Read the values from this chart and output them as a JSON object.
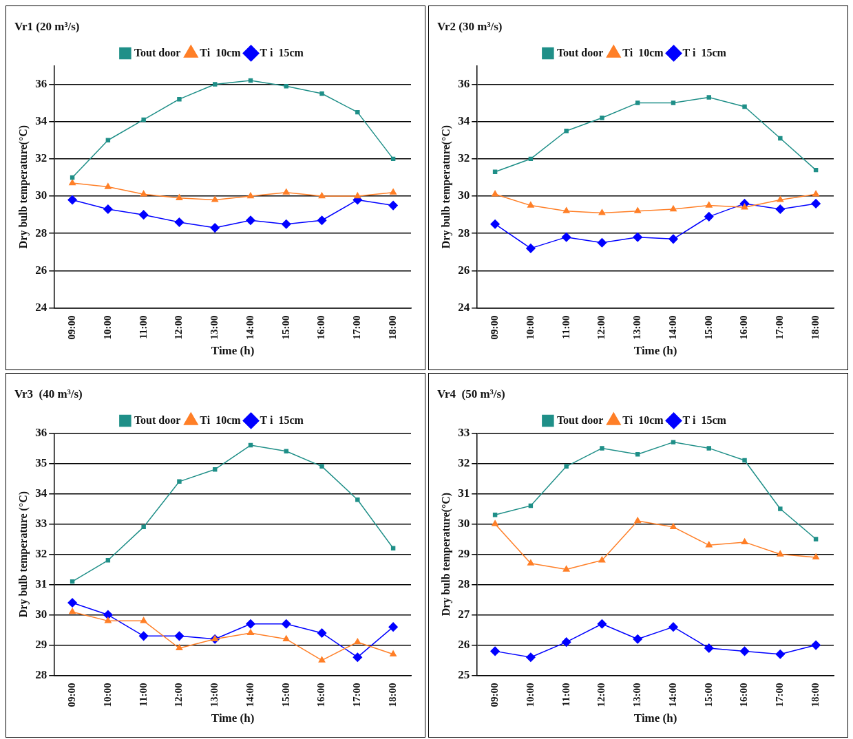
{
  "chart_data": [
    {
      "type": "line",
      "title": "Vr1 (20 m³/s)",
      "xlabel": "Time (h)",
      "ylabel": "Dry bulb temperature(°C)",
      "categories": [
        "09:00",
        "10:00",
        "11:00",
        "12:00",
        "13:00",
        "14:00",
        "15:00",
        "16:00",
        "17:00",
        "18:00"
      ],
      "ylim": [
        24,
        37
      ],
      "yticks": [
        24,
        26,
        28,
        30,
        32,
        34,
        36
      ],
      "grid": "y",
      "legend": "top",
      "series": [
        {
          "name": "Tout door",
          "color": "#1f8f88",
          "marker": "square",
          "values": [
            31.0,
            33.0,
            34.1,
            35.2,
            36.0,
            36.2,
            35.9,
            35.5,
            34.5,
            32.0
          ]
        },
        {
          "name": "Ti  10cm",
          "color": "#ff7f27",
          "marker": "triangle",
          "values": [
            30.7,
            30.5,
            30.1,
            29.9,
            29.8,
            30.0,
            30.2,
            30.0,
            30.0,
            30.2
          ]
        },
        {
          "name": "T i  15cm",
          "color": "#0000ff",
          "marker": "diamond",
          "values": [
            29.8,
            29.3,
            29.0,
            28.6,
            28.3,
            28.7,
            28.5,
            28.7,
            29.8,
            29.5
          ]
        }
      ]
    },
    {
      "type": "line",
      "title": "Vr2 (30 m³/s)",
      "xlabel": "Time (h)",
      "ylabel": "Dry bulb temperature(°C)",
      "categories": [
        "09:00",
        "10:00",
        "11:00",
        "12:00",
        "13:00",
        "14:00",
        "15:00",
        "16:00",
        "17:00",
        "18:00"
      ],
      "ylim": [
        24,
        37
      ],
      "yticks": [
        24,
        26,
        28,
        30,
        32,
        34,
        36
      ],
      "grid": "y",
      "legend": "top",
      "series": [
        {
          "name": "Tout door",
          "color": "#1f8f88",
          "marker": "square",
          "values": [
            31.3,
            32.0,
            33.5,
            34.2,
            35.0,
            35.0,
            35.3,
            34.8,
            33.1,
            31.4
          ]
        },
        {
          "name": "Ti  10cm",
          "color": "#ff7f27",
          "marker": "triangle",
          "values": [
            30.1,
            29.5,
            29.2,
            29.1,
            29.2,
            29.3,
            29.5,
            29.4,
            29.8,
            30.1
          ]
        },
        {
          "name": "T i  15cm",
          "color": "#0000ff",
          "marker": "diamond",
          "values": [
            28.5,
            27.2,
            27.8,
            27.5,
            27.8,
            27.7,
            28.9,
            29.6,
            29.3,
            29.6
          ]
        }
      ]
    },
    {
      "type": "line",
      "title": "Vr3  (40 m³/s)",
      "xlabel": "Time (h)",
      "ylabel": "Dry bulb temperature (°C)",
      "categories": [
        "09:00",
        "10:00",
        "11:00",
        "12:00",
        "13:00",
        "14:00",
        "15:00",
        "16:00",
        "17:00",
        "18:00"
      ],
      "ylim": [
        28,
        36
      ],
      "yticks": [
        28,
        29,
        30,
        31,
        32,
        33,
        34,
        35,
        36
      ],
      "grid": "y",
      "legend": "top",
      "series": [
        {
          "name": "Tout door",
          "color": "#1f8f88",
          "marker": "square",
          "values": [
            31.1,
            31.8,
            32.9,
            34.4,
            34.8,
            35.6,
            35.4,
            34.9,
            33.8,
            32.2
          ]
        },
        {
          "name": "Ti  10cm",
          "color": "#ff7f27",
          "marker": "triangle",
          "values": [
            30.1,
            29.8,
            29.8,
            28.9,
            29.2,
            29.4,
            29.2,
            28.5,
            29.1,
            28.7
          ]
        },
        {
          "name": "T i  15cm",
          "color": "#0000ff",
          "marker": "diamond",
          "values": [
            30.4,
            30.0,
            29.3,
            29.3,
            29.2,
            29.7,
            29.7,
            29.4,
            28.6,
            29.6
          ]
        }
      ]
    },
    {
      "type": "line",
      "title": "Vr4  (50 m³/s)",
      "xlabel": "Time (h)",
      "ylabel": "Dry bulb temperature(°C)",
      "categories": [
        "09:00",
        "10:00",
        "11:00",
        "12:00",
        "13:00",
        "14:00",
        "15:00",
        "16:00",
        "17:00",
        "18:00"
      ],
      "ylim": [
        25,
        33
      ],
      "yticks": [
        25,
        26,
        27,
        28,
        29,
        30,
        31,
        32,
        33
      ],
      "grid": "y",
      "legend": "top",
      "series": [
        {
          "name": "Tout door",
          "color": "#1f8f88",
          "marker": "square",
          "values": [
            30.3,
            30.6,
            31.9,
            32.5,
            32.3,
            32.7,
            32.5,
            32.1,
            30.5,
            29.5
          ]
        },
        {
          "name": "Ti  10cm",
          "color": "#ff7f27",
          "marker": "triangle",
          "values": [
            30.0,
            28.7,
            28.5,
            28.8,
            30.1,
            29.9,
            29.3,
            29.4,
            29.0,
            28.9
          ]
        },
        {
          "name": "T i  15cm",
          "color": "#0000ff",
          "marker": "diamond",
          "values": [
            25.8,
            25.6,
            26.1,
            26.7,
            26.2,
            26.6,
            25.9,
            25.8,
            25.7,
            26.0
          ]
        }
      ]
    }
  ]
}
